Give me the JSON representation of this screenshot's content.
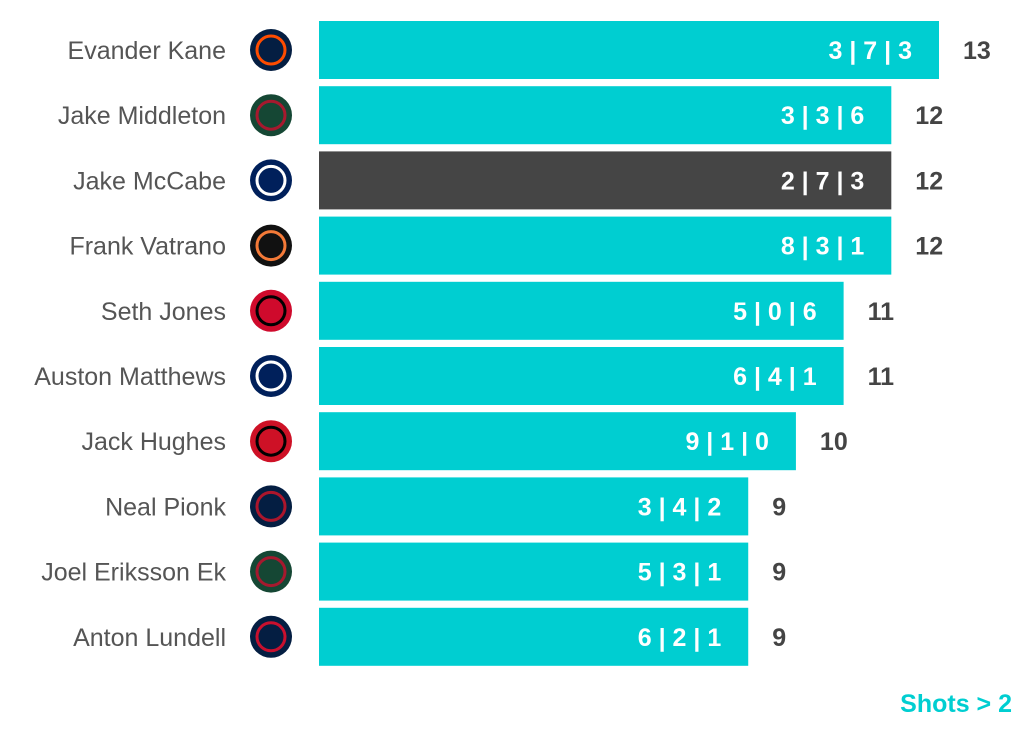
{
  "chart_data": {
    "type": "bar",
    "orientation": "horizontal",
    "xlim": [
      0,
      13
    ],
    "colors": {
      "default": "#00CED1",
      "highlight": "#454545"
    },
    "note": "Shots > 2",
    "rows": [
      {
        "player": "Evander Kane",
        "team": "EDM",
        "team_color": "#041E42",
        "team_accent": "#FF4C00",
        "breakdown": "3 | 7 | 3",
        "value": 13,
        "highlight": false
      },
      {
        "player": "Jake Middleton",
        "team": "MIN",
        "team_color": "#154734",
        "team_accent": "#A6192E",
        "breakdown": "3 | 3 | 6",
        "value": 12,
        "highlight": false
      },
      {
        "player": "Jake McCabe",
        "team": "TOR",
        "team_color": "#00205B",
        "team_accent": "#FFFFFF",
        "breakdown": "2 | 7 | 3",
        "value": 12,
        "highlight": true
      },
      {
        "player": "Frank Vatrano",
        "team": "ANA",
        "team_color": "#111111",
        "team_accent": "#F47A38",
        "breakdown": "8 | 3 | 1",
        "value": 12,
        "highlight": false
      },
      {
        "player": "Seth Jones",
        "team": "CHI",
        "team_color": "#CF0A2C",
        "team_accent": "#000000",
        "breakdown": "5 | 0 | 6",
        "value": 11,
        "highlight": false
      },
      {
        "player": "Auston Matthews",
        "team": "TOR",
        "team_color": "#00205B",
        "team_accent": "#FFFFFF",
        "breakdown": "6 | 4 | 1",
        "value": 11,
        "highlight": false
      },
      {
        "player": "Jack Hughes",
        "team": "NJD",
        "team_color": "#CE1126",
        "team_accent": "#000000",
        "breakdown": "9 | 1 | 0",
        "value": 10,
        "highlight": false
      },
      {
        "player": "Neal Pionk",
        "team": "WPG",
        "team_color": "#041E42",
        "team_accent": "#AC162C",
        "breakdown": "3 | 4 | 2",
        "value": 9,
        "highlight": false
      },
      {
        "player": "Joel Eriksson Ek",
        "team": "MIN",
        "team_color": "#154734",
        "team_accent": "#A6192E",
        "breakdown": "5 | 3 | 1",
        "value": 9,
        "highlight": false
      },
      {
        "player": "Anton Lundell",
        "team": "FLA",
        "team_color": "#041E42",
        "team_accent": "#C8102E",
        "breakdown": "6 | 2 | 1",
        "value": 9,
        "highlight": false
      }
    ]
  }
}
